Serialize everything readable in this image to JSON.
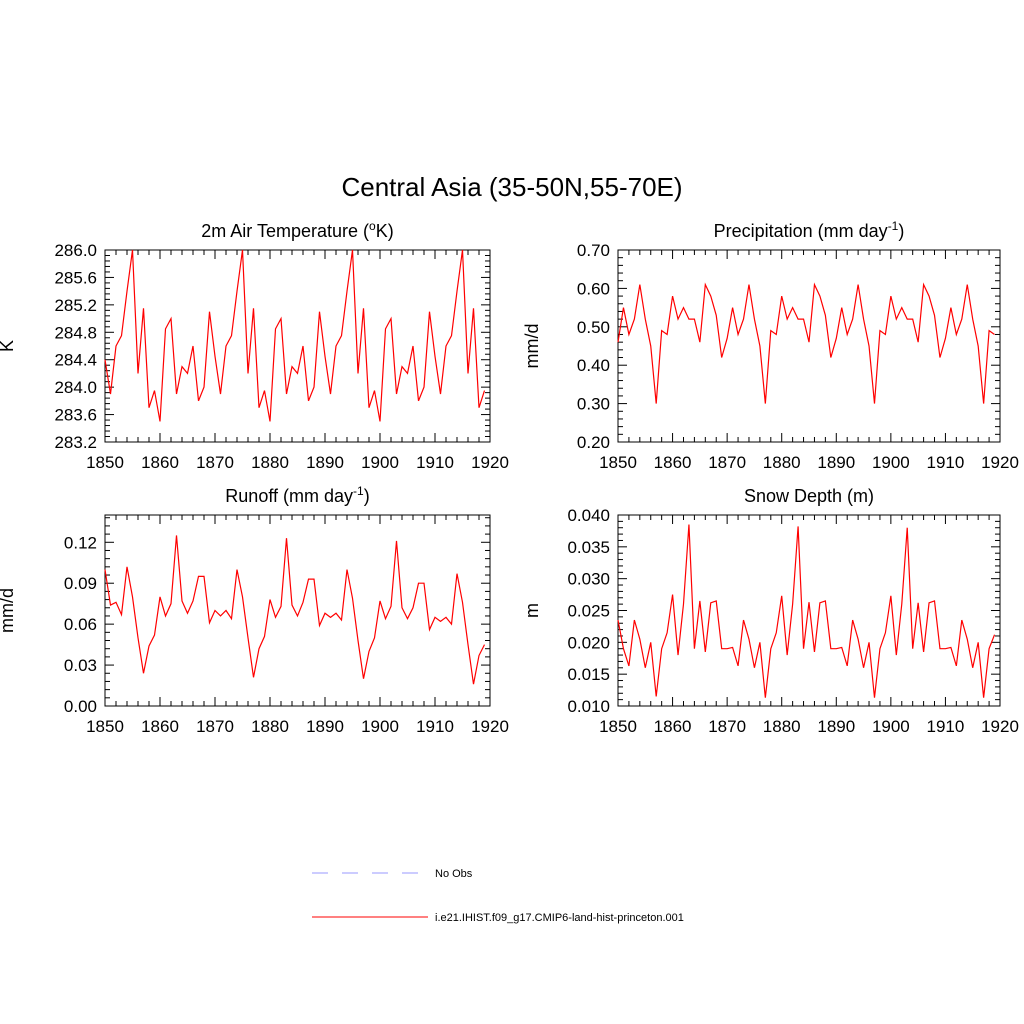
{
  "figure": {
    "title": "Central Asia (35-50N,55-70E)"
  },
  "legend": [
    {
      "label": "No Obs",
      "color": "#9999ff",
      "dash": "dashed"
    },
    {
      "label": "i.e21.IHIST.f09_g17.CMIP6-land-hist-princeton.001",
      "color": "#ff0000",
      "dash": "solid"
    }
  ],
  "chart_data": [
    {
      "type": "line",
      "title_main": "2m Air Temperature (",
      "title_sup": "o",
      "title_tail": "K)",
      "ylabel": "K",
      "xlim": [
        1850,
        1920
      ],
      "ylim": [
        283.2,
        286.0
      ],
      "xticks": [
        "1850",
        "1860",
        "1870",
        "1880",
        "1890",
        "1900",
        "1910",
        "1920"
      ],
      "yticks": [
        "283.2",
        "283.6",
        "284.0",
        "284.4",
        "284.8",
        "285.2",
        "285.6",
        "286.0"
      ],
      "series": [
        {
          "color": "#ff0000",
          "x_start": 1850,
          "values": [
            284.4,
            283.9,
            284.6,
            284.75,
            285.4,
            286.0,
            284.2,
            285.15,
            283.7,
            283.95,
            283.5,
            284.85,
            285.0,
            283.9,
            284.3,
            284.2,
            284.6,
            283.8,
            284.0,
            285.1,
            284.45,
            283.9,
            284.6,
            284.75,
            285.4,
            286.0,
            284.2,
            285.15,
            283.7,
            283.95,
            283.5,
            284.85,
            285.0,
            283.9,
            284.3,
            284.2,
            284.6,
            283.8,
            284.0,
            285.1,
            284.45,
            283.9,
            284.6,
            284.75,
            285.4,
            286.0,
            284.2,
            285.15,
            283.7,
            283.95,
            283.5,
            284.85,
            285.0,
            283.9,
            284.3,
            284.2,
            284.6,
            283.8,
            284.0,
            285.1,
            284.45,
            283.9,
            284.6,
            284.75,
            285.4,
            286.0,
            284.2,
            285.15,
            283.7,
            283.95
          ]
        }
      ]
    },
    {
      "type": "line",
      "title_main": "Precipitation (mm day",
      "title_sup": "-1",
      "title_tail": ")",
      "ylabel": "mm/d",
      "xlim": [
        1850,
        1920
      ],
      "ylim": [
        0.2,
        0.7
      ],
      "xticks": [
        "1850",
        "1860",
        "1870",
        "1880",
        "1890",
        "1900",
        "1910",
        "1920"
      ],
      "yticks": [
        "0.20",
        "0.30",
        "0.40",
        "0.50",
        "0.60",
        "0.70"
      ],
      "series": [
        {
          "color": "#ff0000",
          "x_start": 1850,
          "values": [
            0.46,
            0.55,
            0.48,
            0.52,
            0.61,
            0.52,
            0.45,
            0.3,
            0.49,
            0.48,
            0.58,
            0.52,
            0.55,
            0.52,
            0.52,
            0.46,
            0.61,
            0.58,
            0.53,
            0.42,
            0.47,
            0.55,
            0.48,
            0.52,
            0.61,
            0.52,
            0.45,
            0.3,
            0.49,
            0.48,
            0.58,
            0.52,
            0.55,
            0.52,
            0.52,
            0.46,
            0.61,
            0.58,
            0.53,
            0.42,
            0.47,
            0.55,
            0.48,
            0.52,
            0.61,
            0.52,
            0.45,
            0.3,
            0.49,
            0.48,
            0.58,
            0.52,
            0.55,
            0.52,
            0.52,
            0.46,
            0.61,
            0.58,
            0.53,
            0.42,
            0.47,
            0.55,
            0.48,
            0.52,
            0.61,
            0.52,
            0.45,
            0.3,
            0.49,
            0.48
          ]
        }
      ]
    },
    {
      "type": "line",
      "title_main": "Runoff (mm day",
      "title_sup": "-1",
      "title_tail": ")",
      "ylabel": "mm/d",
      "xlim": [
        1850,
        1920
      ],
      "ylim": [
        0.0,
        0.14
      ],
      "xticks": [
        "1850",
        "1860",
        "1870",
        "1880",
        "1890",
        "1900",
        "1910",
        "1920"
      ],
      "yticks": [
        "0.00",
        "0.03",
        "0.06",
        "0.09",
        "0.12"
      ],
      "ytick_values": [
        0.0,
        0.03,
        0.06,
        0.09,
        0.12
      ],
      "series": [
        {
          "color": "#ff0000",
          "x_start": 1850,
          "values": [
            0.1,
            0.074,
            0.076,
            0.067,
            0.102,
            0.08,
            0.05,
            0.024,
            0.044,
            0.052,
            0.08,
            0.066,
            0.075,
            0.125,
            0.077,
            0.068,
            0.077,
            0.095,
            0.095,
            0.061,
            0.07,
            0.066,
            0.07,
            0.064,
            0.1,
            0.08,
            0.05,
            0.021,
            0.042,
            0.051,
            0.078,
            0.065,
            0.073,
            0.123,
            0.074,
            0.066,
            0.076,
            0.093,
            0.093,
            0.059,
            0.068,
            0.065,
            0.068,
            0.063,
            0.1,
            0.079,
            0.048,
            0.02,
            0.04,
            0.05,
            0.077,
            0.064,
            0.073,
            0.121,
            0.072,
            0.064,
            0.072,
            0.09,
            0.09,
            0.056,
            0.065,
            0.062,
            0.065,
            0.06,
            0.097,
            0.076,
            0.045,
            0.016,
            0.037,
            0.045
          ]
        }
      ]
    },
    {
      "type": "line",
      "title_main": "Snow Depth (m)",
      "title_sup": "",
      "title_tail": "",
      "ylabel": "m",
      "xlim": [
        1850,
        1920
      ],
      "ylim": [
        0.01,
        0.04
      ],
      "xticks": [
        "1850",
        "1860",
        "1870",
        "1880",
        "1890",
        "1900",
        "1910",
        "1920"
      ],
      "yticks": [
        "0.010",
        "0.015",
        "0.020",
        "0.025",
        "0.030",
        "0.035",
        "0.040"
      ],
      "series": [
        {
          "color": "#ff0000",
          "x_start": 1850,
          "values": [
            0.0235,
            0.019,
            0.0163,
            0.0235,
            0.0205,
            0.016,
            0.02,
            0.0115,
            0.019,
            0.0215,
            0.0275,
            0.018,
            0.026,
            0.0385,
            0.019,
            0.0265,
            0.0185,
            0.0262,
            0.0265,
            0.019,
            0.019,
            0.0192,
            0.0163,
            0.0235,
            0.0205,
            0.016,
            0.02,
            0.0113,
            0.019,
            0.0215,
            0.0273,
            0.018,
            0.026,
            0.0382,
            0.019,
            0.0263,
            0.0185,
            0.0262,
            0.0265,
            0.019,
            0.019,
            0.0192,
            0.0163,
            0.0235,
            0.0205,
            0.016,
            0.02,
            0.0113,
            0.019,
            0.0215,
            0.0273,
            0.018,
            0.026,
            0.038,
            0.019,
            0.0262,
            0.0185,
            0.0262,
            0.0265,
            0.019,
            0.019,
            0.0192,
            0.0163,
            0.0235,
            0.0205,
            0.016,
            0.02,
            0.0113,
            0.019,
            0.0212
          ]
        }
      ]
    }
  ]
}
